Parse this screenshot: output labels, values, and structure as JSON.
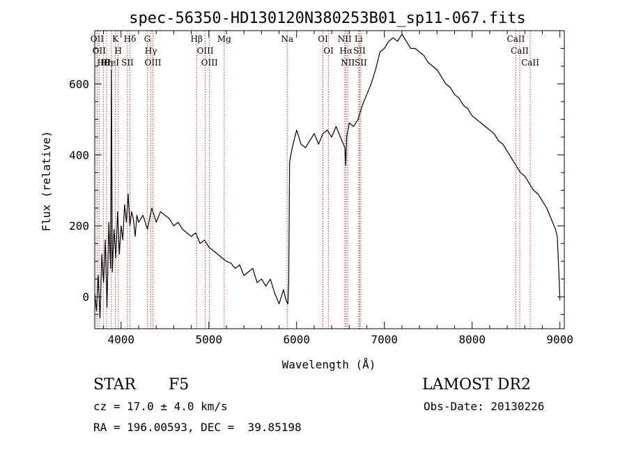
{
  "chart_data": {
    "type": "line",
    "title": "spec-56350-HD130120N380253B01_sp11-067.fits",
    "xlabel": "Wavelength (Å)",
    "ylabel": "Flux (relative)",
    "xlim": [
      3700,
      9050
    ],
    "ylim": [
      -90,
      750
    ],
    "xticks": [
      4000,
      5000,
      6000,
      7000,
      8000,
      9000
    ],
    "yticks": [
      0,
      200,
      400,
      600
    ],
    "grid": false,
    "series": [
      {
        "x": [
          3700,
          3720,
          3740,
          3760,
          3780,
          3800,
          3820,
          3840,
          3860,
          3880,
          3890,
          3900,
          3920,
          3940,
          3960,
          3980,
          4000,
          4020,
          4040,
          4060,
          4080,
          4100,
          4120,
          4140,
          4160,
          4180,
          4200,
          4250,
          4300,
          4350,
          4400,
          4450,
          4500,
          4550,
          4600,
          4650,
          4700,
          4750,
          4800,
          4850,
          4900,
          4950,
          5000,
          5050,
          5100,
          5150,
          5200,
          5250,
          5300,
          5350,
          5400,
          5450,
          5500,
          5550,
          5600,
          5650,
          5700,
          5750,
          5800,
          5850,
          5880,
          5900,
          5910,
          5920,
          5950,
          6000,
          6050,
          6100,
          6150,
          6200,
          6250,
          6300,
          6350,
          6400,
          6450,
          6500,
          6550,
          6560,
          6570,
          6600,
          6650,
          6700,
          6750,
          6800,
          6850,
          6900,
          6950,
          7000,
          7050,
          7100,
          7150,
          7200,
          7250,
          7300,
          7350,
          7400,
          7450,
          7500,
          7550,
          7600,
          7650,
          7700,
          7750,
          7800,
          7850,
          7900,
          7950,
          8000,
          8050,
          8100,
          8150,
          8200,
          8250,
          8300,
          8350,
          8400,
          8450,
          8500,
          8550,
          8600,
          8650,
          8700,
          8750,
          8800,
          8850,
          8900,
          8950,
          8970,
          8990,
          9000
        ],
        "y": [
          10,
          -40,
          60,
          -60,
          120,
          40,
          160,
          -30,
          210,
          80,
          640,
          70,
          190,
          110,
          240,
          120,
          200,
          160,
          260,
          210,
          290,
          200,
          240,
          220,
          170,
          230,
          210,
          230,
          190,
          250,
          210,
          240,
          230,
          220,
          200,
          210,
          190,
          180,
          170,
          180,
          150,
          160,
          140,
          130,
          120,
          110,
          100,
          95,
          80,
          90,
          60,
          70,
          80,
          40,
          50,
          30,
          50,
          10,
          -20,
          20,
          -10,
          -20,
          40,
          380,
          420,
          470,
          430,
          420,
          440,
          460,
          430,
          460,
          470,
          450,
          480,
          450,
          420,
          370,
          450,
          490,
          480,
          500,
          540,
          570,
          600,
          640,
          690,
          700,
          720,
          730,
          720,
          740,
          720,
          700,
          700,
          690,
          680,
          660,
          650,
          640,
          620,
          600,
          590,
          570,
          560,
          540,
          530,
          510,
          500,
          490,
          480,
          470,
          460,
          440,
          430,
          410,
          390,
          370,
          350,
          340,
          320,
          300,
          290,
          270,
          250,
          220,
          190,
          170,
          60,
          -10
        ]
      }
    ],
    "line_markers": [
      {
        "wavelength": 3727,
        "label": "OII"
      },
      {
        "wavelength": 3750,
        "label": "OII"
      },
      {
        "wavelength": 3798,
        "label": "Hθ"
      },
      {
        "wavelength": 3835,
        "label": "Hη"
      },
      {
        "wavelength": 3889,
        "label": "HeI"
      },
      {
        "wavelength": 3934,
        "label": "K"
      },
      {
        "wavelength": 3968,
        "label": "H"
      },
      {
        "wavelength": 4101,
        "label": "Hδ"
      },
      {
        "wavelength": 4072,
        "label": "SII"
      },
      {
        "wavelength": 4300,
        "label": "G"
      },
      {
        "wavelength": 4340,
        "label": "Hγ"
      },
      {
        "wavelength": 4363,
        "label": "OIII"
      },
      {
        "wavelength": 4861,
        "label": "Hβ"
      },
      {
        "wavelength": 4959,
        "label": "OIII"
      },
      {
        "wavelength": 5007,
        "label": "OIII"
      },
      {
        "wavelength": 5175,
        "label": "Mg"
      },
      {
        "wavelength": 5893,
        "label": "Na"
      },
      {
        "wavelength": 6300,
        "label": "OI"
      },
      {
        "wavelength": 6364,
        "label": "OI"
      },
      {
        "wavelength": 6548,
        "label": "NII"
      },
      {
        "wavelength": 6563,
        "label": "Hα"
      },
      {
        "wavelength": 6583,
        "label": "NII"
      },
      {
        "wavelength": 6708,
        "label": "Li"
      },
      {
        "wavelength": 6716,
        "label": "SII"
      },
      {
        "wavelength": 6731,
        "label": "SII"
      },
      {
        "wavelength": 8498,
        "label": "CaII"
      },
      {
        "wavelength": 8542,
        "label": "CaII"
      },
      {
        "wavelength": 8662,
        "label": "CaII"
      }
    ]
  },
  "info": {
    "class_label": "STAR",
    "subclass": "F5",
    "survey": "LAMOST DR2",
    "redshift": "cz = 17.0 ± 4.0 km/s",
    "obs_date": "Obs-Date: 20130226",
    "coords": "RA = 196.00593, DEC =  39.85198"
  }
}
